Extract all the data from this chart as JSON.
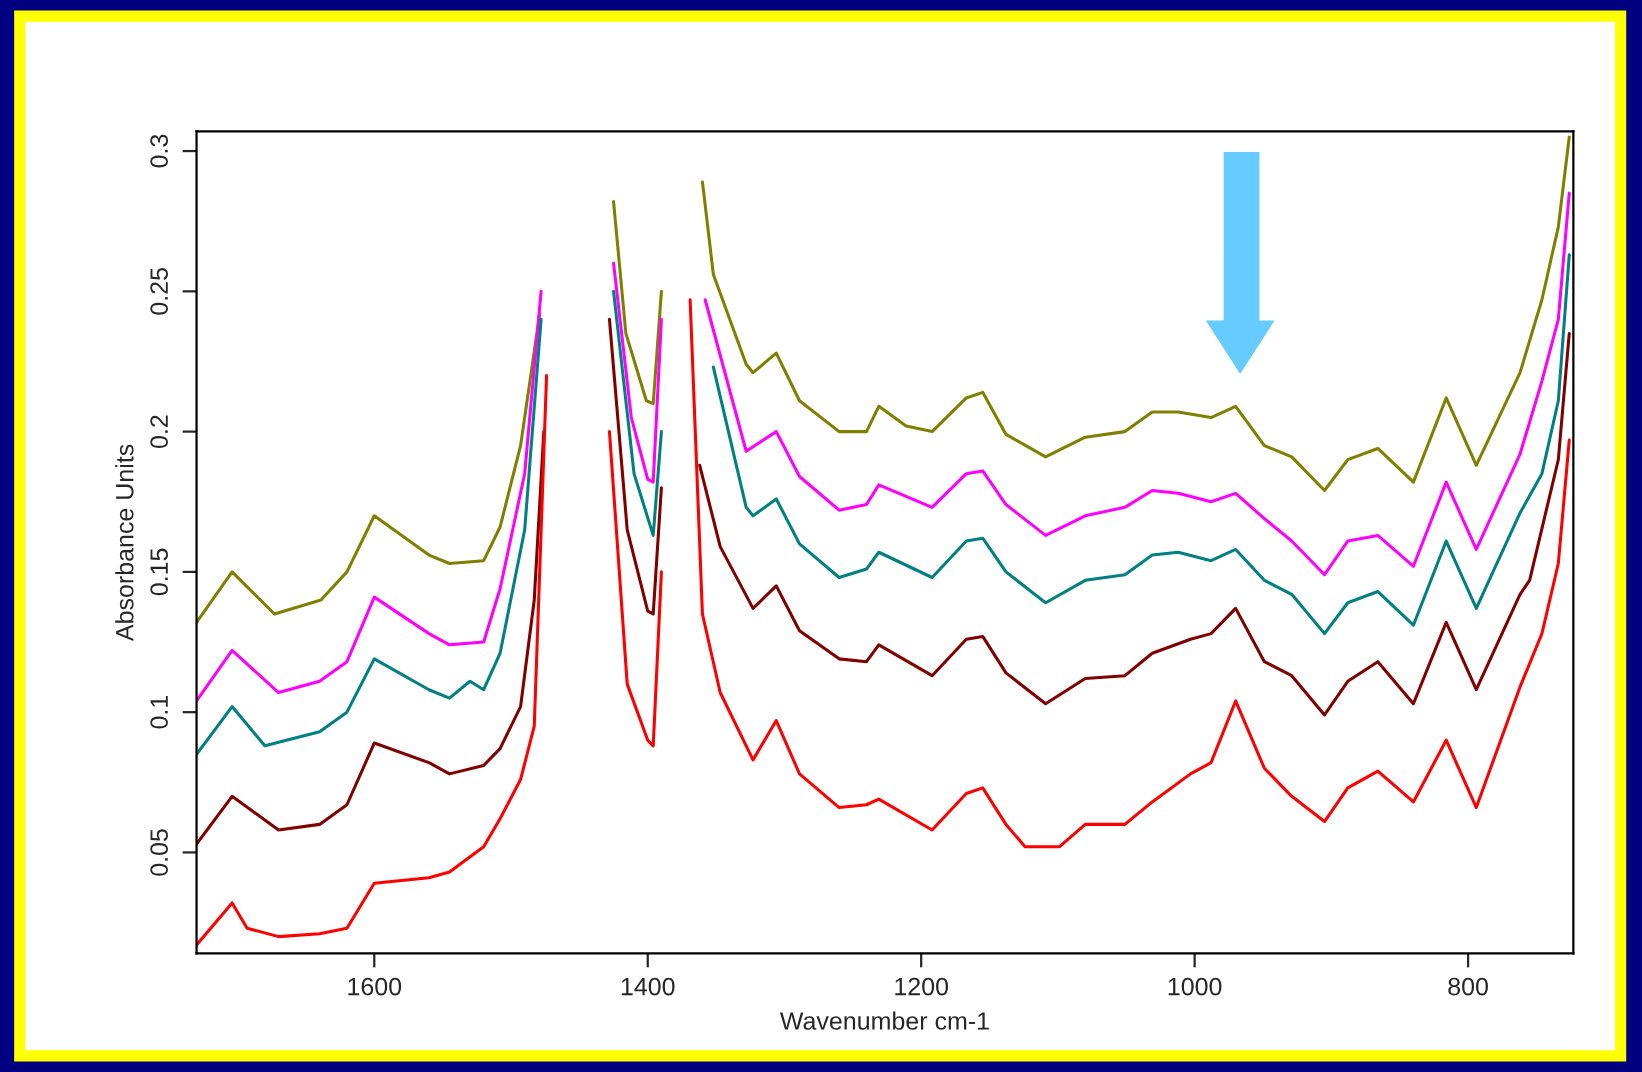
{
  "chart_data": {
    "type": "line",
    "xlabel": "Wavenumber cm-1",
    "ylabel": "Absorbance Units",
    "xlim": [
      1730,
      723
    ],
    "xticks": [
      1600,
      1400,
      1200,
      1000,
      800
    ],
    "ylim": [
      0.014,
      0.307
    ],
    "yticks": [
      0.05,
      0.1,
      0.15,
      0.2,
      0.25,
      0.3
    ],
    "grid": false,
    "legend": false,
    "line_style": "solid",
    "marker": "none",
    "series": [
      {
        "color": "#808000",
        "x": [
          1730,
          1704,
          1673,
          1639,
          1620,
          1600,
          1560,
          1545,
          1520,
          1508,
          1493,
          1479,
          1474,
          1430,
          1425,
          1416,
          1401,
          1396,
          1390,
          1386,
          1364,
          1360,
          1352,
          1328,
          1323,
          1306,
          1289,
          1260,
          1240,
          1231,
          1211,
          1192,
          1167,
          1155,
          1138,
          1109,
          1080,
          1051,
          1031,
          1012,
          988,
          970,
          949,
          929,
          905,
          888,
          866,
          840,
          816,
          794,
          762,
          746,
          734,
          726
        ],
        "values": [
          0.132,
          0.15,
          0.135,
          0.14,
          0.15,
          0.17,
          0.156,
          0.153,
          0.154,
          0.166,
          0.195,
          0.242,
          null,
          null,
          0.282,
          0.235,
          0.211,
          0.21,
          0.25,
          null,
          null,
          0.289,
          0.256,
          0.224,
          0.221,
          0.228,
          0.211,
          0.2,
          0.2,
          0.209,
          0.202,
          0.2,
          0.212,
          0.214,
          0.199,
          0.191,
          0.198,
          0.2,
          0.207,
          0.207,
          0.205,
          0.209,
          0.195,
          0.191,
          0.179,
          0.19,
          0.194,
          0.182,
          0.212,
          0.188,
          0.221,
          0.247,
          0.273,
          0.305
        ]
      },
      {
        "color": "#ff00ff",
        "x": [
          1730,
          1704,
          1670,
          1640,
          1620,
          1600,
          1560,
          1545,
          1520,
          1508,
          1490,
          1478,
          1471,
          1432,
          1425,
          1412,
          1400,
          1396,
          1390,
          1386,
          1363,
          1358,
          1328,
          1306,
          1289,
          1260,
          1240,
          1231,
          1192,
          1167,
          1155,
          1138,
          1109,
          1080,
          1051,
          1031,
          1012,
          988,
          970,
          949,
          929,
          905,
          888,
          866,
          840,
          816,
          794,
          762,
          746,
          734,
          726
        ],
        "values": [
          0.104,
          0.122,
          0.107,
          0.111,
          0.118,
          0.141,
          0.128,
          0.124,
          0.125,
          0.144,
          0.185,
          0.25,
          null,
          null,
          0.26,
          0.205,
          0.183,
          0.182,
          0.24,
          null,
          null,
          0.247,
          0.193,
          0.2,
          0.184,
          0.172,
          0.174,
          0.181,
          0.173,
          0.185,
          0.186,
          0.174,
          0.163,
          0.17,
          0.173,
          0.179,
          0.178,
          0.175,
          0.178,
          0.169,
          0.161,
          0.149,
          0.161,
          0.163,
          0.152,
          0.182,
          0.158,
          0.192,
          0.218,
          0.24,
          0.285
        ]
      },
      {
        "color": "#008080",
        "x": [
          1730,
          1704,
          1680,
          1640,
          1620,
          1600,
          1560,
          1545,
          1530,
          1520,
          1508,
          1490,
          1478,
          1470,
          1433,
          1425,
          1410,
          1396,
          1390,
          1385,
          1362,
          1352,
          1328,
          1323,
          1306,
          1289,
          1260,
          1240,
          1231,
          1192,
          1167,
          1155,
          1138,
          1109,
          1080,
          1051,
          1031,
          1012,
          988,
          970,
          949,
          929,
          905,
          888,
          866,
          840,
          816,
          794,
          762,
          746,
          734,
          726
        ],
        "values": [
          0.085,
          0.102,
          0.088,
          0.093,
          0.1,
          0.119,
          0.108,
          0.105,
          0.111,
          0.108,
          0.121,
          0.165,
          0.24,
          null,
          null,
          0.25,
          0.185,
          0.163,
          0.2,
          null,
          null,
          0.223,
          0.173,
          0.17,
          0.176,
          0.16,
          0.148,
          0.151,
          0.157,
          0.148,
          0.161,
          0.162,
          0.15,
          0.139,
          0.147,
          0.149,
          0.156,
          0.157,
          0.154,
          0.158,
          0.147,
          0.142,
          0.128,
          0.139,
          0.143,
          0.131,
          0.161,
          0.137,
          0.171,
          0.185,
          0.211,
          0.263
        ]
      },
      {
        "color": "#800000",
        "x": [
          1730,
          1704,
          1670,
          1640,
          1620,
          1600,
          1560,
          1545,
          1520,
          1508,
          1493,
          1483,
          1476,
          1468,
          1435,
          1428,
          1415,
          1400,
          1396,
          1390,
          1384,
          1374,
          1362,
          1347,
          1323,
          1306,
          1289,
          1260,
          1240,
          1231,
          1192,
          1167,
          1155,
          1138,
          1109,
          1080,
          1051,
          1031,
          1003,
          988,
          970,
          949,
          929,
          905,
          888,
          866,
          840,
          816,
          794,
          762,
          755,
          734,
          726
        ],
        "values": [
          0.053,
          0.07,
          0.058,
          0.06,
          0.067,
          0.089,
          0.082,
          0.078,
          0.081,
          0.087,
          0.102,
          0.14,
          0.2,
          null,
          null,
          0.24,
          0.165,
          0.136,
          0.135,
          0.18,
          null,
          null,
          0.188,
          0.159,
          0.137,
          0.145,
          0.129,
          0.119,
          0.118,
          0.124,
          0.113,
          0.126,
          0.127,
          0.114,
          0.103,
          0.112,
          0.113,
          0.121,
          0.126,
          0.128,
          0.137,
          0.118,
          0.113,
          0.099,
          0.111,
          0.118,
          0.103,
          0.132,
          0.108,
          0.142,
          0.147,
          0.19,
          0.235
        ]
      },
      {
        "color": "#ff0000",
        "x": [
          1730,
          1704,
          1693,
          1670,
          1640,
          1620,
          1600,
          1560,
          1545,
          1520,
          1508,
          1493,
          1483,
          1474,
          1467,
          1435,
          1428,
          1415,
          1400,
          1396,
          1390,
          1382,
          1372,
          1369,
          1360,
          1347,
          1323,
          1306,
          1289,
          1260,
          1240,
          1231,
          1192,
          1167,
          1155,
          1138,
          1124,
          1099,
          1080,
          1051,
          1031,
          1003,
          988,
          970,
          949,
          929,
          905,
          888,
          866,
          840,
          816,
          794,
          762,
          746,
          734,
          726
        ],
        "values": [
          0.017,
          0.032,
          0.023,
          0.02,
          0.021,
          0.023,
          0.039,
          0.041,
          0.043,
          0.052,
          0.062,
          0.076,
          0.095,
          0.22,
          null,
          null,
          0.2,
          0.11,
          0.09,
          0.088,
          0.15,
          null,
          null,
          0.247,
          0.135,
          0.107,
          0.083,
          0.097,
          0.078,
          0.066,
          0.067,
          0.069,
          0.058,
          0.071,
          0.073,
          0.06,
          0.052,
          0.052,
          0.06,
          0.06,
          0.068,
          0.078,
          0.082,
          0.104,
          0.08,
          0.07,
          0.061,
          0.073,
          0.079,
          0.068,
          0.09,
          0.066,
          0.109,
          0.128,
          0.153,
          0.197
        ]
      }
    ]
  }
}
